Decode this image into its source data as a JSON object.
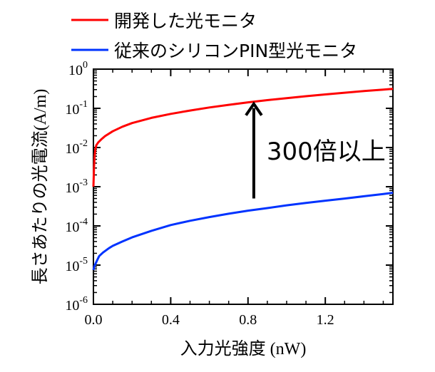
{
  "chart_data": {
    "type": "line",
    "y_scale": "log",
    "xlim": [
      0,
      1.55
    ],
    "ylim": [
      1e-06,
      1
    ],
    "x_ticks": [
      0.0,
      0.4,
      0.8,
      1.2
    ],
    "x_tick_labels": [
      "0.0",
      "0.4",
      "0.8",
      "1.2"
    ],
    "y_ticks": [
      1,
      0.1,
      0.01,
      0.001,
      0.0001,
      1e-05,
      1e-06
    ],
    "y_tick_labels": [
      {
        "base": "10",
        "exp": "0"
      },
      {
        "base": "10",
        "exp": "-1"
      },
      {
        "base": "10",
        "exp": "-2"
      },
      {
        "base": "10",
        "exp": "-3"
      },
      {
        "base": "10",
        "exp": "-4"
      },
      {
        "base": "10",
        "exp": "-5"
      },
      {
        "base": "10",
        "exp": "-6"
      }
    ],
    "xlabel": {
      "main": "入力光強度",
      "unit": " (nW)"
    },
    "ylabel": {
      "main": "長さあたりの光電流",
      "unit": "(A/m)"
    },
    "legend": {
      "placement": "top-left, outside plot",
      "entries": [
        {
          "label": "開発した光モニタ",
          "color": "#ff0000"
        },
        {
          "label": "従来のシリコンPIN型光モニタ",
          "color": "#0033ff"
        }
      ]
    },
    "series": [
      {
        "name": "開発した光モニタ",
        "color": "#ff0000",
        "points": [
          [
            0.0,
            0.001
          ],
          [
            0.003,
            0.003
          ],
          [
            0.006,
            0.006
          ],
          [
            0.01,
            0.009
          ],
          [
            0.015,
            0.0115
          ],
          [
            0.025,
            0.0135
          ],
          [
            0.04,
            0.016
          ],
          [
            0.06,
            0.0195
          ],
          [
            0.1,
            0.026
          ],
          [
            0.15,
            0.034
          ],
          [
            0.2,
            0.042
          ],
          [
            0.3,
            0.057
          ],
          [
            0.4,
            0.072
          ],
          [
            0.5,
            0.088
          ],
          [
            0.6,
            0.105
          ],
          [
            0.7,
            0.123
          ],
          [
            0.8,
            0.142
          ],
          [
            0.9,
            0.162
          ],
          [
            1.0,
            0.182
          ],
          [
            1.1,
            0.204
          ],
          [
            1.2,
            0.226
          ],
          [
            1.3,
            0.25
          ],
          [
            1.4,
            0.275
          ],
          [
            1.5,
            0.3
          ],
          [
            1.55,
            0.315
          ]
        ]
      },
      {
        "name": "従来のシリコンPIN型光モニタ",
        "color": "#0033ff",
        "points": [
          [
            0.0,
            7.5e-06
          ],
          [
            0.005,
            9.5e-06
          ],
          [
            0.01,
            1.05e-05
          ],
          [
            0.02,
            1.35e-05
          ],
          [
            0.03,
            1.7e-05
          ],
          [
            0.05,
            2.1e-05
          ],
          [
            0.08,
            2.7e-05
          ],
          [
            0.1,
            3.1e-05
          ],
          [
            0.15,
            4e-05
          ],
          [
            0.2,
            5.1e-05
          ],
          [
            0.3,
            7.5e-05
          ],
          [
            0.4,
            0.000105
          ],
          [
            0.5,
            0.000135
          ],
          [
            0.6,
            0.000168
          ],
          [
            0.7,
            0.000205
          ],
          [
            0.8,
            0.000245
          ],
          [
            0.9,
            0.000285
          ],
          [
            1.0,
            0.000335
          ],
          [
            1.1,
            0.000385
          ],
          [
            1.2,
            0.00044
          ],
          [
            1.3,
            0.0005
          ],
          [
            1.4,
            0.00057
          ],
          [
            1.5,
            0.00065
          ],
          [
            1.55,
            0.0007
          ]
        ]
      }
    ],
    "annotation": {
      "text": "300倍以上",
      "arrow_x": 0.83,
      "arrow_from_y": 0.0005,
      "arrow_to_y": 0.13
    }
  }
}
